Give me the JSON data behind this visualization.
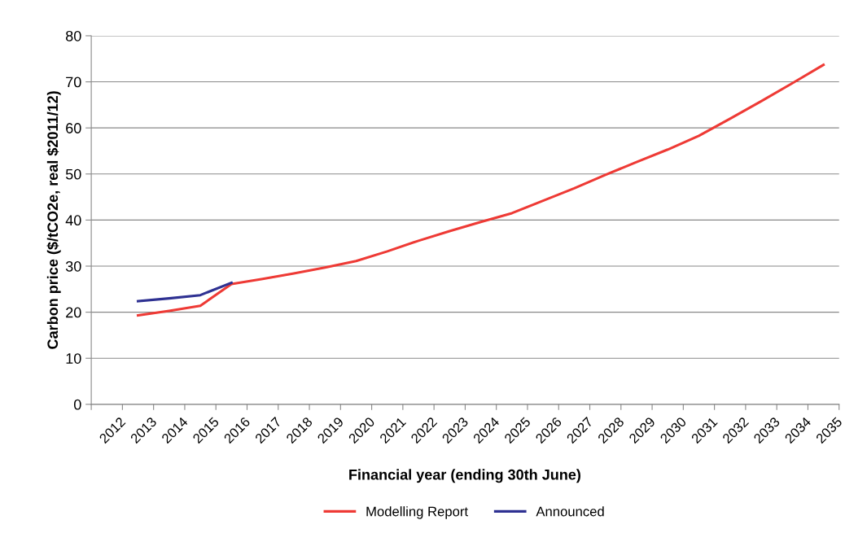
{
  "chart_data": {
    "type": "line",
    "xlabel": "Financial year (ending 30th June)",
    "ylabel": "Carbon price ($/tCO2e, real $2011/12)",
    "categories": [
      "2012",
      "2013",
      "2014",
      "2015",
      "2016",
      "2017",
      "2018",
      "2019",
      "2020",
      "2021",
      "2022",
      "2023",
      "2024",
      "2025",
      "2026",
      "2027",
      "2028",
      "2029",
      "2030",
      "2031",
      "2032",
      "2033",
      "2034",
      "2035"
    ],
    "series": [
      {
        "name": "Modelling Report",
        "color": "#ee3a35",
        "values": [
          null,
          19.3,
          20.3,
          21.4,
          26.1,
          27.2,
          28.4,
          29.7,
          31.1,
          33.2,
          35.5,
          37.6,
          39.6,
          41.5,
          44.2,
          46.9,
          49.8,
          52.6,
          55.3,
          58.3,
          62.0,
          65.8,
          69.7,
          73.7
        ]
      },
      {
        "name": "Announced",
        "color": "#2e3192",
        "values": [
          null,
          22.4,
          23.0,
          23.7,
          26.4,
          null,
          null,
          null,
          null,
          null,
          null,
          null,
          null,
          null,
          null,
          null,
          null,
          null,
          null,
          null,
          null,
          null,
          null,
          null
        ]
      }
    ],
    "ylim": [
      0,
      80
    ],
    "yticks": [
      0,
      10,
      20,
      30,
      40,
      50,
      60,
      70,
      80
    ],
    "grid": "y",
    "legend": "bottom",
    "marker": "none",
    "line_style": "solid"
  }
}
